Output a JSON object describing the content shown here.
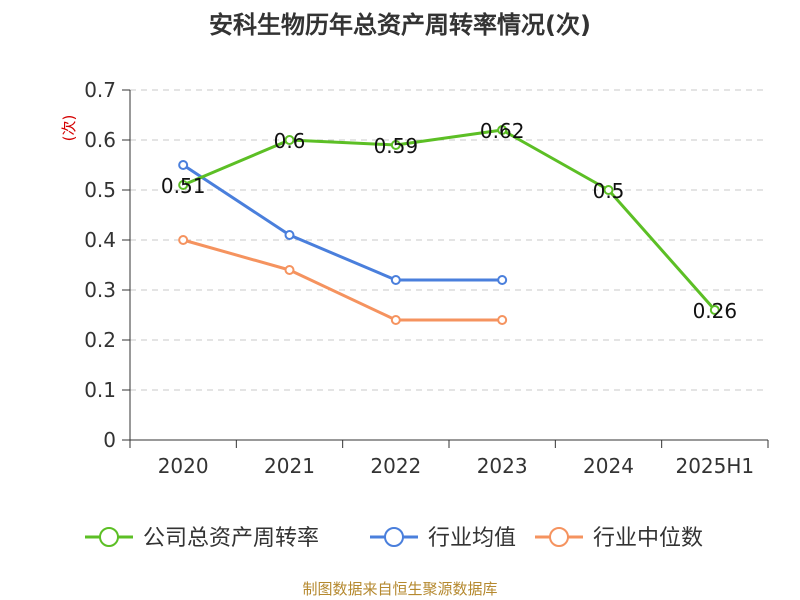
{
  "chart_data": {
    "type": "line",
    "title": "安科生物历年总资产周转率情况(次)",
    "unit_label": "(次)",
    "categories": [
      "2020",
      "2021",
      "2022",
      "2023",
      "2024",
      "2025H1"
    ],
    "ylim": [
      0,
      0.7
    ],
    "yticks": [
      "0",
      "0.1",
      "0.2",
      "0.3",
      "0.4",
      "0.5",
      "0.6",
      "0.7"
    ],
    "grid": true,
    "legend_position": "bottom",
    "series": [
      {
        "name": "公司总资产周转率",
        "color": "#5cbf25",
        "values": [
          0.51,
          0.6,
          0.59,
          0.62,
          0.5,
          0.26
        ],
        "show_labels": true
      },
      {
        "name": "行业均值",
        "color": "#4a7fdc",
        "values": [
          0.55,
          0.41,
          0.32,
          0.32,
          null,
          null
        ],
        "show_labels": false
      },
      {
        "name": "行业中位数",
        "color": "#f5935f",
        "values": [
          0.4,
          0.34,
          0.24,
          0.24,
          null,
          null
        ],
        "show_labels": false
      }
    ]
  },
  "source": "制图数据来自恒生聚源数据库"
}
